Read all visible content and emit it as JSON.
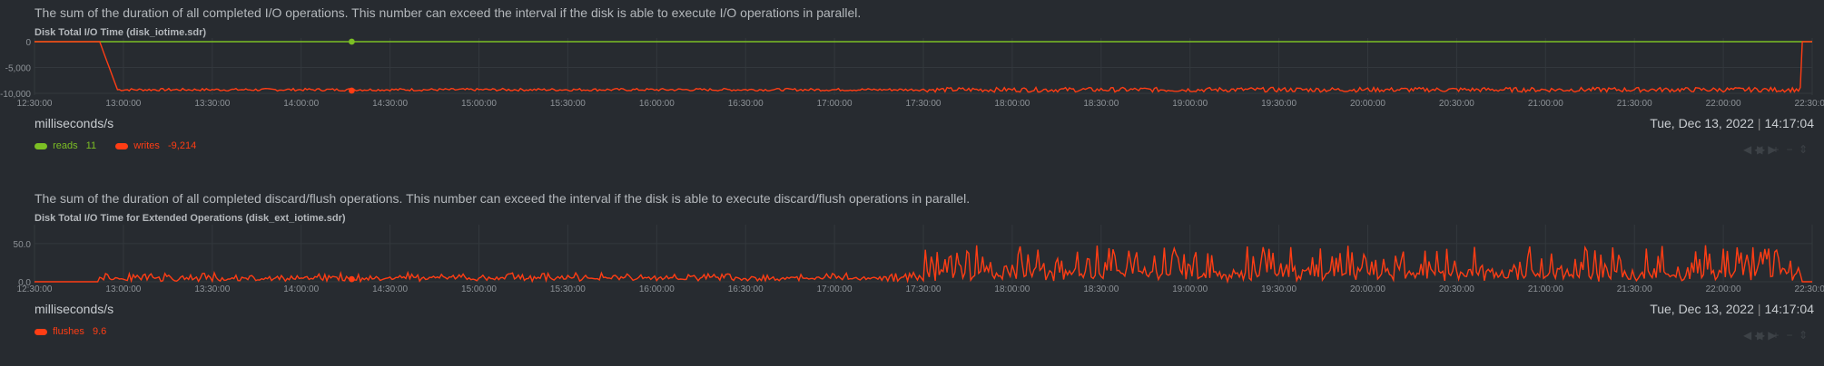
{
  "colors": {
    "background": "#272b30",
    "grid": "#33383d",
    "reads": "#7cbf24",
    "writes": "#ff3d14",
    "flushes": "#ff3d14"
  },
  "x_ticks": [
    "12:30:00",
    "13:00:00",
    "13:30:00",
    "14:00:00",
    "14:30:00",
    "15:00:00",
    "15:30:00",
    "16:00:00",
    "16:30:00",
    "17:00:00",
    "17:30:00",
    "18:00:00",
    "18:30:00",
    "19:00:00",
    "19:30:00",
    "20:00:00",
    "20:30:00",
    "21:00:00",
    "21:30:00",
    "22:00:00",
    "22:30:00"
  ],
  "panels": [
    {
      "info": "The sum of the duration of all completed I/O operations. This number can exceed the interval if the disk is able to execute I/O operations in parallel.",
      "title": "Disk Total I/O Time (disk_iotime.sdr)",
      "units": "milliseconds/s",
      "date": "Tue, Dec 13, 2022",
      "time": "14:17:04",
      "y_ticks": [
        "0",
        "-5,000",
        "-10,000"
      ],
      "legend": [
        {
          "name": "reads",
          "value": "11",
          "color_key": "reads",
          "icon": "legend-pill"
        },
        {
          "name": "writes",
          "value": "-9,214",
          "color_key": "writes",
          "icon": "legend-pill"
        }
      ],
      "toolbox_icons": [
        "pan-left-icon",
        "pan-right-icon",
        "zoom-in-icon",
        "zoom-out-icon",
        "resize-icon"
      ]
    },
    {
      "info": "The sum of the duration of all completed discard/flush operations. This number can exceed the interval if the disk is able to execute discard/flush operations in parallel.",
      "title": "Disk Total I/O Time for Extended Operations (disk_ext_iotime.sdr)",
      "units": "milliseconds/s",
      "date": "Tue, Dec 13, 2022",
      "time": "14:17:04",
      "y_ticks": [
        "50.0",
        "0.0"
      ],
      "legend": [
        {
          "name": "flushes",
          "value": "9.6",
          "color_key": "flushes",
          "icon": "legend-pill"
        }
      ],
      "toolbox_icons": [
        "pan-left-icon",
        "pan-right-icon",
        "zoom-in-icon",
        "zoom-out-icon",
        "resize-icon"
      ]
    }
  ],
  "chart_data": [
    {
      "type": "line",
      "title": "Disk Total I/O Time (disk_iotime.sdr)",
      "xlabel": "",
      "ylabel": "milliseconds/s",
      "x_range": [
        "12:30:00",
        "22:30:00"
      ],
      "ylim": [
        -10000,
        0
      ],
      "grid": true,
      "legend": "bottom-left",
      "series": [
        {
          "name": "reads",
          "color": "#7cbf24",
          "pattern": "flat",
          "baseline": 0,
          "noise": 0
        },
        {
          "name": "writes",
          "color": "#ff3d14",
          "pattern": "dip",
          "baseline": -9300,
          "noise": 250,
          "noise_high": 450,
          "busy_from_min": 300,
          "seed": 7
        }
      ],
      "marker_time": "14:17:04"
    },
    {
      "type": "line",
      "title": "Disk Total I/O Time for Extended Operations (disk_ext_iotime.sdr)",
      "xlabel": "",
      "ylabel": "milliseconds/s",
      "x_range": [
        "12:30:00",
        "22:30:00"
      ],
      "ylim": [
        0,
        70
      ],
      "grid": true,
      "legend": "bottom-left",
      "series": [
        {
          "name": "flushes",
          "color": "#ff3d14",
          "pattern": "spiky",
          "baseline": 5,
          "noise": 8,
          "noise_high": 45,
          "busy_from_min": 300,
          "seed": 13
        }
      ],
      "marker_time": "14:17:04"
    }
  ]
}
